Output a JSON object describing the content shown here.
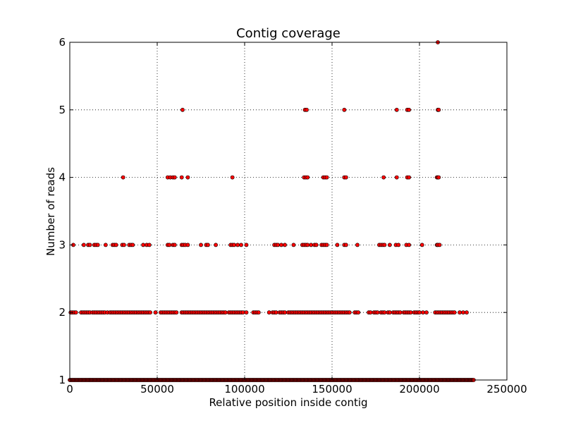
{
  "chart_data": {
    "type": "scatter",
    "title": "Contig coverage",
    "xlabel": "Relative position inside contig",
    "ylabel": "Number of reads",
    "xlim": [
      0,
      250000
    ],
    "ylim": [
      1,
      6
    ],
    "x_ticks": [
      0,
      50000,
      100000,
      150000,
      200000,
      250000
    ],
    "y_ticks": [
      1,
      2,
      3,
      4,
      5,
      6
    ],
    "grid": true,
    "marker_color": "#ff0000",
    "marker_edge_color": "#000000",
    "series": [
      {
        "points": [
          {
            "y": 6,
            "x": [
              210500
            ]
          },
          {
            "y": 5,
            "x": [
              64500,
              134500,
              135500,
              157000,
              187000,
              193000,
              194000,
              210500,
              211000
            ]
          },
          {
            "y": 4,
            "x": [
              30500,
              56000,
              57500,
              59000,
              60000,
              64000,
              67500,
              93000,
              134000,
              135000,
              136000,
              145000,
              146000,
              147000,
              157000,
              158000,
              179500,
              187000,
              193000,
              194000,
              210000,
              210500,
              211000
            ]
          },
          {
            "y": 3,
            "x": [
              2000,
              8000,
              10500,
              11500,
              14000,
              15000,
              16000,
              20500,
              24500,
              25500,
              26500,
              30000,
              31000,
              34000,
              35000,
              36000,
              42000,
              44000,
              45500,
              56000,
              57000,
              59000,
              60000,
              64000,
              65000,
              66000,
              67500,
              75000,
              78000,
              79000,
              83500,
              92000,
              93000,
              94000,
              96000,
              98000,
              101000,
              117000,
              118000,
              119000,
              121000,
              123000,
              128000,
              133000,
              134000,
              135000,
              136000,
              138000,
              140000,
              141000,
              144000,
              145000,
              146000,
              147000,
              153000,
              157000,
              158000,
              164500,
              177000,
              178000,
              179000,
              180000,
              183000,
              186500,
              188000,
              192500,
              194000,
              201500,
              210000,
              210500,
              211500
            ]
          },
          {
            "y": 2,
            "x": [
              500,
              1500,
              2500,
              3500,
              6500,
              7500,
              8500,
              9500,
              10500,
              11500,
              13000,
              14000,
              15000,
              16000,
              17000,
              18000,
              19000,
              20000,
              21500,
              23000,
              24000,
              25000,
              26000,
              27000,
              28000,
              29000,
              30000,
              31000,
              32000,
              33000,
              34000,
              35000,
              36000,
              37000,
              38000,
              39000,
              40000,
              41000,
              42000,
              43000,
              44000,
              45000,
              46000,
              49000,
              52000,
              53000,
              54000,
              55000,
              56000,
              57000,
              58000,
              59000,
              60000,
              61000,
              64000,
              65000,
              66000,
              67000,
              68000,
              69000,
              70000,
              71000,
              72000,
              73000,
              74000,
              75000,
              76000,
              77000,
              78000,
              79000,
              80000,
              81000,
              82000,
              83000,
              84000,
              85000,
              86000,
              87000,
              88000,
              89000,
              91000,
              92000,
              93000,
              94000,
              95000,
              96000,
              97000,
              98000,
              99000,
              101000,
              105000,
              106000,
              107000,
              108000,
              114000,
              116000,
              117000,
              118000,
              120000,
              121000,
              122000,
              123000,
              125000,
              126000,
              127000,
              128000,
              129000,
              130000,
              131000,
              132000,
              133000,
              134000,
              135000,
              136000,
              137000,
              138000,
              139000,
              140000,
              141000,
              142000,
              143000,
              144000,
              145000,
              146000,
              147000,
              148000,
              149000,
              150000,
              151000,
              152000,
              153000,
              154000,
              155000,
              156000,
              157000,
              158000,
              159000,
              160000,
              163000,
              164000,
              165000,
              171000,
              172000,
              174000,
              175000,
              176000,
              178000,
              179000,
              180000,
              182000,
              183000,
              185000,
              186000,
              187000,
              188000,
              189000,
              191000,
              192000,
              193000,
              194000,
              195000,
              197000,
              198000,
              199000,
              200000,
              202000,
              204000,
              209000,
              210000,
              211000,
              212000,
              213000,
              214000,
              215000,
              216000,
              217000,
              218000,
              219000,
              220000,
              223000,
              225000,
              227000
            ]
          },
          {
            "y": 1,
            "x_range": [
              0,
              231000
            ],
            "step": 500
          }
        ]
      }
    ]
  }
}
